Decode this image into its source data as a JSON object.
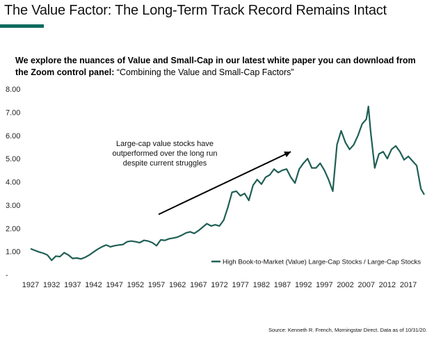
{
  "header": {
    "title": "The Value Factor: The Long-Term Track Record Remains Intact",
    "subtitle_bold": "We explore the nuances of Value and Small-Cap in our latest white paper you can download from the Zoom control panel:",
    "subtitle_quote": "“Combining the Value and Small-Cap Factors”"
  },
  "colors": {
    "accent": "#0d6b5e",
    "series": "#1f5f55",
    "arrow": "#000000"
  },
  "footer": {
    "source": "Source: Kenneth R. French, Morningstar Direct. Data as of 10/31/20."
  },
  "chart_data": {
    "type": "line",
    "title": "",
    "xlabel": "",
    "ylabel": "",
    "x_ticks": [
      "1927",
      "1932",
      "1937",
      "1942",
      "1947",
      "1952",
      "1957",
      "1962",
      "1967",
      "1972",
      "1977",
      "1982",
      "1987",
      "1992",
      "1997",
      "2002",
      "2007",
      "2012",
      "2017"
    ],
    "y_ticks": [
      "-",
      "1.00",
      "2.00",
      "3.00",
      "4.00",
      "5.00",
      "6.00",
      "7.00",
      "8.00"
    ],
    "ylim": [
      0,
      8
    ],
    "xlim": [
      1927,
      2020.8
    ],
    "grid": false,
    "legend": {
      "position": "bottom-right",
      "entries": [
        "High Book-to-Market (Value) Large-Cap Stocks / Large-Cap Stocks"
      ]
    },
    "annotation": {
      "text_lines": [
        "Large-cap value stocks have",
        "outperformed over the long run",
        "despite current struggles"
      ],
      "arrow": {
        "from": [
          1957.5,
          2.6
        ],
        "to": [
          1989,
          5.3
        ]
      }
    },
    "series": [
      {
        "name": "High Book-to-Market (Value) Large-Cap Stocks / Large-Cap Stocks",
        "x": [
          1927,
          1928,
          1929,
          1930,
          1931,
          1932,
          1933,
          1934,
          1935,
          1936,
          1937,
          1938,
          1939,
          1940,
          1941,
          1942,
          1943,
          1944,
          1945,
          1946,
          1947,
          1948,
          1949,
          1950,
          1951,
          1952,
          1953,
          1954,
          1955,
          1956,
          1957,
          1958,
          1959,
          1960,
          1961,
          1962,
          1963,
          1964,
          1965,
          1966,
          1967,
          1968,
          1969,
          1970,
          1971,
          1972,
          1973,
          1974,
          1975,
          1976,
          1977,
          1978,
          1979,
          1980,
          1981,
          1982,
          1983,
          1984,
          1985,
          1986,
          1987,
          1988,
          1989,
          1990,
          1991,
          1992,
          1993,
          1994,
          1995,
          1996,
          1997,
          1998,
          1999,
          2000,
          2001,
          2002,
          2003,
          2004,
          2005,
          2006,
          2007,
          2007.5,
          2008,
          2009,
          2010,
          2011,
          2012,
          2013,
          2014,
          2015,
          2016,
          2017,
          2018,
          2019,
          2020,
          2020.8
        ],
        "y": [
          1.12,
          1.05,
          0.98,
          0.93,
          0.85,
          0.62,
          0.8,
          0.78,
          0.95,
          0.85,
          0.7,
          0.72,
          0.68,
          0.75,
          0.85,
          0.98,
          1.1,
          1.2,
          1.28,
          1.2,
          1.25,
          1.28,
          1.3,
          1.42,
          1.45,
          1.42,
          1.38,
          1.48,
          1.45,
          1.38,
          1.25,
          1.5,
          1.48,
          1.55,
          1.58,
          1.62,
          1.7,
          1.8,
          1.85,
          1.78,
          1.9,
          2.05,
          2.2,
          2.1,
          2.15,
          2.1,
          2.35,
          2.9,
          3.55,
          3.6,
          3.4,
          3.5,
          3.2,
          3.85,
          4.1,
          3.9,
          4.2,
          4.3,
          4.55,
          4.4,
          4.5,
          4.55,
          4.2,
          3.95,
          4.55,
          4.8,
          5.0,
          4.6,
          4.6,
          4.8,
          4.5,
          4.1,
          3.6,
          5.6,
          6.2,
          5.7,
          5.4,
          5.6,
          6.0,
          6.5,
          6.7,
          7.25,
          6.2,
          4.6,
          5.2,
          5.3,
          5.0,
          5.4,
          5.55,
          5.3,
          4.95,
          5.1,
          4.9,
          4.7,
          3.7,
          3.45
        ]
      }
    ]
  }
}
